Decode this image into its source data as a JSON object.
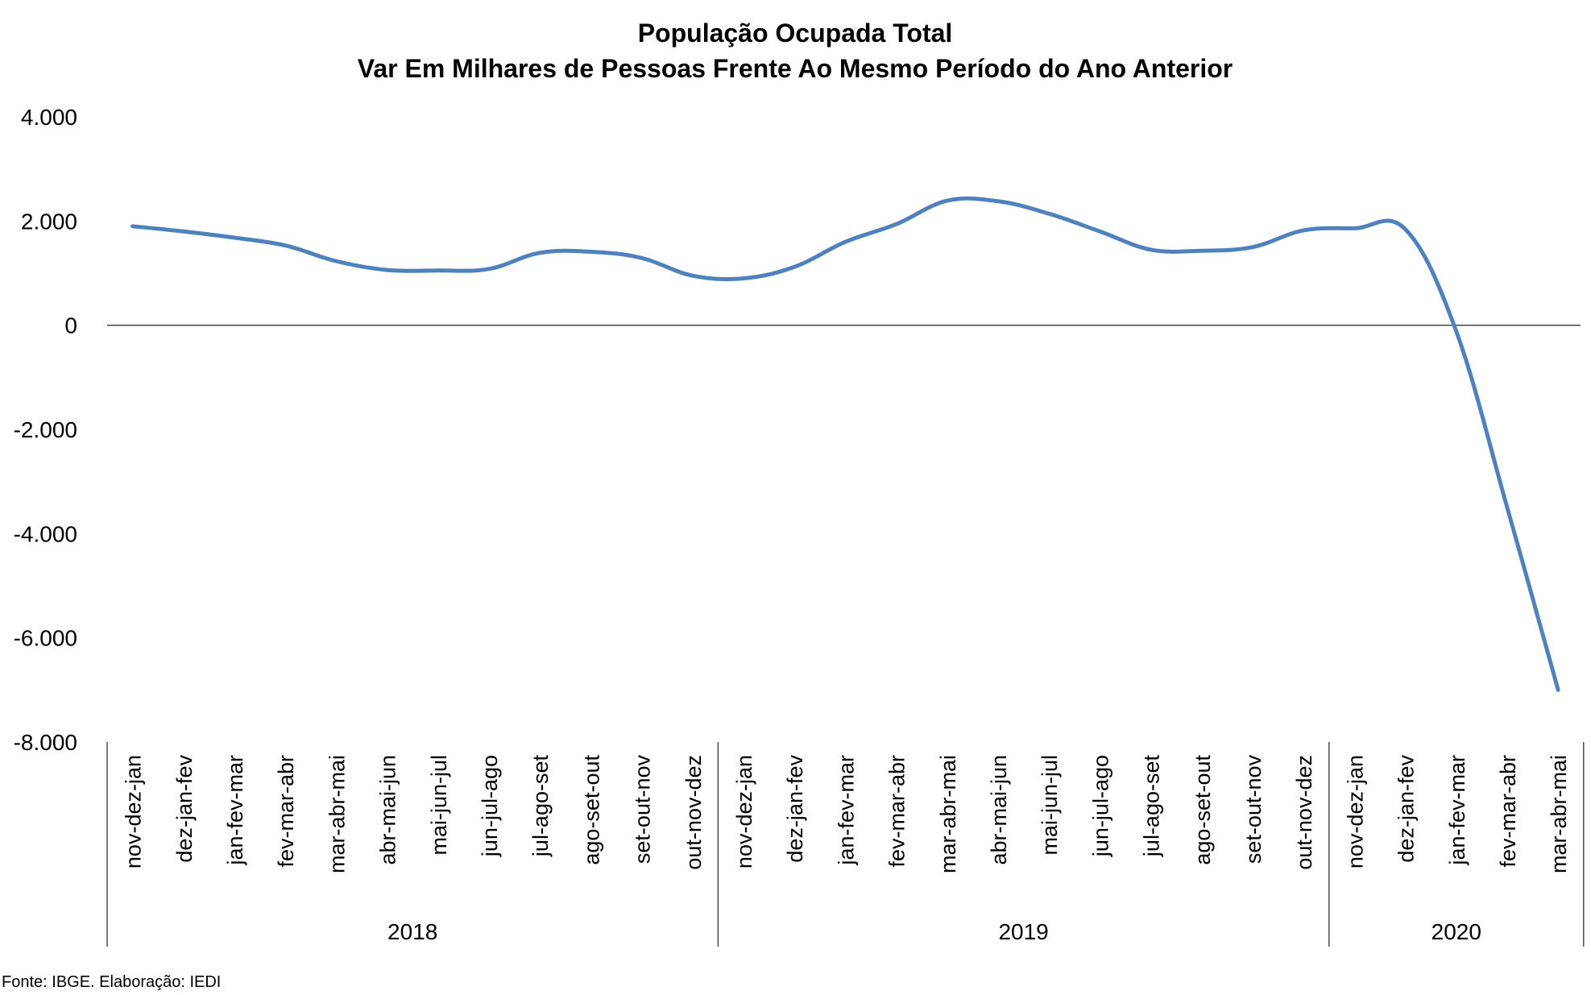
{
  "chart_data": {
    "type": "line",
    "title": "População Ocupada Total",
    "subtitle": "Var Em Milhares de Pessoas Frente Ao Mesmo Período do Ano Anterior",
    "xlabel": "",
    "ylabel": "",
    "ylim": [
      -8000,
      4000
    ],
    "yticks": [
      4000,
      2000,
      0,
      -2000,
      -4000,
      -6000,
      -8000
    ],
    "ytick_labels": [
      "4.000",
      "2.000",
      "0",
      "-2.000",
      "-4.000",
      "-6.000",
      "-8.000"
    ],
    "categories": [
      "nov-dez-jan",
      "dez-jan-fev",
      "jan-fev-mar",
      "fev-mar-abr",
      "mar-abr-mai",
      "abr-mai-jun",
      "mai-jun-jul",
      "jun-jul-ago",
      "jul-ago-set",
      "ago-set-out",
      "set-out-nov",
      "out-nov-dez",
      "nov-dez-jan",
      "dez-jan-fev",
      "jan-fev-mar",
      "fev-mar-abr",
      "mar-abr-mai",
      "abr-mai-jun",
      "mai-jun-jul",
      "jun-jul-ago",
      "jul-ago-set",
      "ago-set-out",
      "set-out-nov",
      "out-nov-dez",
      "nov-dez-jan",
      "dez-jan-fev",
      "jan-fev-mar",
      "fev-mar-abr",
      "mar-abr-mai"
    ],
    "groups": [
      {
        "label": "2018",
        "count": 12
      },
      {
        "label": "2019",
        "count": 12
      },
      {
        "label": "2020",
        "count": 5
      }
    ],
    "series": [
      {
        "color": "#4f81bd",
        "values": [
          1900,
          1800,
          1680,
          1530,
          1230,
          1060,
          1050,
          1080,
          1390,
          1410,
          1290,
          950,
          900,
          1120,
          1600,
          1940,
          2390,
          2380,
          2140,
          1800,
          1450,
          1430,
          1500,
          1820,
          1860,
          1840,
          -120,
          -3500,
          -7000
        ]
      }
    ],
    "grid": false,
    "legend": "none"
  },
  "source_note": "Fonte: IBGE. Elaboração: IEDI"
}
